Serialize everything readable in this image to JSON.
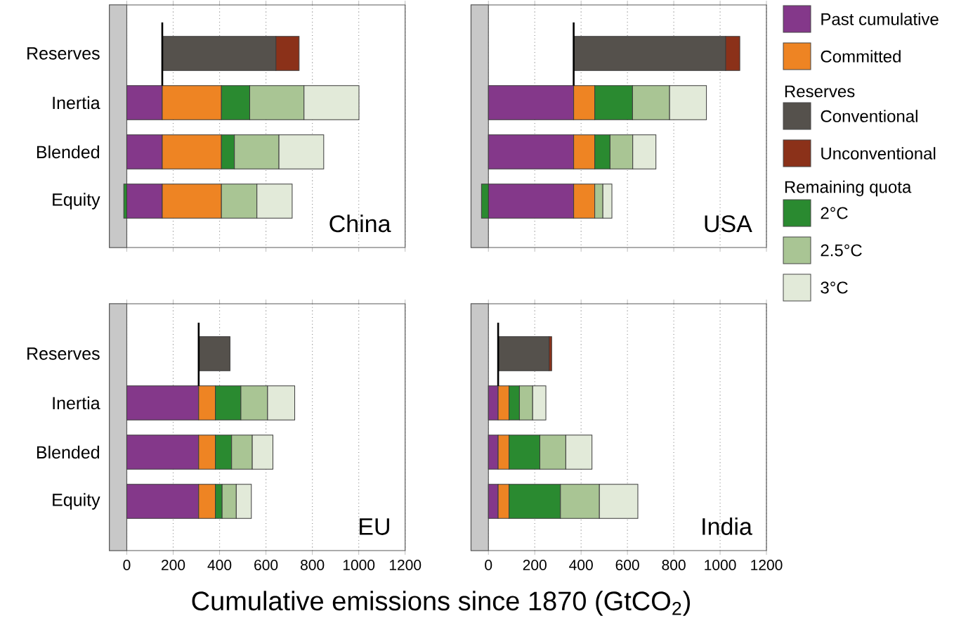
{
  "chart_data": [
    {
      "type": "bar",
      "orientation": "horizontal",
      "stacked": true,
      "title": "China",
      "categories": [
        "Reserves",
        "Inertia",
        "Blended",
        "Equity"
      ],
      "series": [
        {
          "color": "#84388a",
          "values": [
            null,
            153,
            153,
            153
          ]
        },
        {
          "color": "#ee8423",
          "values": [
            null,
            255,
            255,
            255
          ]
        },
        {
          "color": "#55514c",
          "values": [
            490,
            null,
            null,
            null
          ],
          "base": [
            153,
            null,
            null,
            null
          ]
        },
        {
          "color": "#8b3119",
          "values": [
            100,
            null,
            null,
            null
          ]
        },
        {
          "color": "#2a8a30",
          "values": [
            null,
            122,
            56,
            -13
          ]
        },
        {
          "color": "#a9c594",
          "values": [
            null,
            234,
            192,
            153
          ]
        },
        {
          "color": "#e2ead9",
          "values": [
            null,
            237,
            193,
            152
          ]
        }
      ],
      "xlim": [
        -75,
        1200
      ],
      "xticks": [
        0,
        200,
        400,
        600,
        800,
        1000,
        1200
      ],
      "grid": "x",
      "tick_labels": "y",
      "bands": [
        {
          "axis": "x",
          "from": -75,
          "to": 0,
          "color": "#c8c8c8"
        }
      ],
      "ref_lines": [
        {
          "axis": "x",
          "value": 153,
          "color": "#000000"
        }
      ]
    },
    {
      "type": "bar",
      "orientation": "horizontal",
      "stacked": true,
      "title": "USA",
      "categories": [
        null,
        null,
        null,
        null
      ],
      "series": [
        {
          "name": "Past cumulative",
          "color": "#84388a",
          "values": [
            null,
            368,
            368,
            368
          ]
        },
        {
          "name": "Committed",
          "color": "#ee8423",
          "values": [
            null,
            91,
            91,
            91
          ]
        },
        {
          "name": "Conventional",
          "color": "#55514c",
          "values": [
            656,
            null,
            null,
            null
          ],
          "base": [
            368,
            null,
            null,
            null
          ]
        },
        {
          "name": "Unconventional",
          "color": "#8b3119",
          "values": [
            61,
            null,
            null,
            null
          ]
        },
        {
          "name": "2°C",
          "color": "#2a8a30",
          "values": [
            null,
            163,
            66,
            -30
          ]
        },
        {
          "name": "2.5°C",
          "color": "#a9c594",
          "values": [
            null,
            160,
            98,
            35
          ]
        },
        {
          "name": "3°C",
          "color": "#e2ead9",
          "values": [
            null,
            159,
            100,
            39
          ]
        }
      ],
      "xlim": [
        -75,
        1200
      ],
      "xticks": [
        0,
        200,
        400,
        600,
        800,
        1000,
        1200
      ],
      "grid": "x",
      "tick_labels": false,
      "legend": "right",
      "annotations": [
        "Reserves",
        "Remaining quota"
      ],
      "bands": [
        {
          "axis": "x",
          "from": -75,
          "to": 0,
          "color": "#c8c8c8"
        }
      ],
      "ref_lines": [
        {
          "axis": "x",
          "value": 368,
          "color": "#000000"
        }
      ]
    },
    {
      "type": "bar",
      "orientation": "horizontal",
      "stacked": true,
      "title": "EU",
      "categories": [
        "Reserves",
        "Inertia",
        "Blended",
        "Equity"
      ],
      "xlabel": "Cumulative emissions since 1870 (GtCO$_{2}$)",
      "series": [
        {
          "color": "#84388a",
          "values": [
            null,
            310,
            310,
            310
          ]
        },
        {
          "color": "#ee8423",
          "values": [
            null,
            72,
            72,
            72
          ]
        },
        {
          "color": "#55514c",
          "values": [
            135,
            null,
            null,
            null
          ],
          "base": [
            310,
            null,
            null,
            null
          ]
        },
        {
          "color": "#2a8a30",
          "values": [
            null,
            110,
            70,
            29
          ]
        },
        {
          "color": "#a9c594",
          "values": [
            null,
            115,
            89,
            61
          ]
        },
        {
          "color": "#e2ead9",
          "values": [
            null,
            117,
            89,
            65
          ]
        }
      ],
      "xlim": [
        -75,
        1200
      ],
      "xticks": [
        0,
        200,
        400,
        600,
        800,
        1000,
        1200
      ],
      "grid": "x",
      "bands": [
        {
          "axis": "x",
          "from": -75,
          "to": 0,
          "color": "#c8c8c8"
        }
      ],
      "ref_lines": [
        {
          "axis": "x",
          "value": 310,
          "color": "#000000"
        }
      ]
    },
    {
      "type": "bar",
      "orientation": "horizontal",
      "stacked": true,
      "title": "India",
      "categories": [
        null,
        null,
        null,
        null
      ],
      "series": [
        {
          "color": "#84388a",
          "values": [
            null,
            42,
            42,
            42
          ]
        },
        {
          "color": "#ee8423",
          "values": [
            null,
            47,
            47,
            47
          ]
        },
        {
          "color": "#55514c",
          "values": [
            220,
            null,
            null,
            null
          ],
          "base": [
            42,
            null,
            null,
            null
          ]
        },
        {
          "color": "#8b3119",
          "values": [
            11,
            null,
            null,
            null
          ]
        },
        {
          "color": "#2a8a30",
          "values": [
            null,
            45,
            133,
            222
          ]
        },
        {
          "color": "#a9c594",
          "values": [
            null,
            57,
            112,
            168
          ]
        },
        {
          "color": "#e2ead9",
          "values": [
            null,
            57,
            113,
            166
          ]
        }
      ],
      "xlim": [
        -75,
        1200
      ],
      "xticks": [
        0,
        200,
        400,
        600,
        800,
        1000,
        1200
      ],
      "grid": "x",
      "tick_labels": "x",
      "bands": [
        {
          "axis": "x",
          "from": -75,
          "to": 0,
          "color": "#c8c8c8"
        }
      ],
      "ref_lines": [
        {
          "axis": "x",
          "value": 42,
          "color": "#000000"
        }
      ]
    }
  ]
}
